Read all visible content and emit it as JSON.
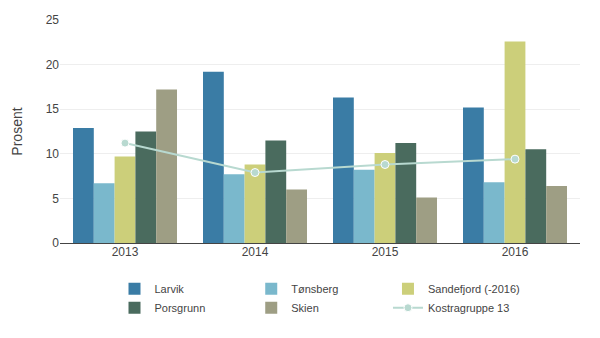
{
  "chart_data": {
    "type": "bar",
    "ylabel": "Prosent",
    "categories": [
      "2013",
      "2014",
      "2015",
      "2016"
    ],
    "series": [
      {
        "name": "Larvik",
        "color": "#3a7ca5",
        "values": [
          12.9,
          19.2,
          16.3,
          15.2
        ]
      },
      {
        "name": "Tønsberg",
        "color": "#7ab8cc",
        "values": [
          6.7,
          7.7,
          8.2,
          6.8
        ]
      },
      {
        "name": "Sandefjord (-2016)",
        "color": "#cccf7a",
        "values": [
          9.7,
          8.8,
          10.1,
          22.6
        ]
      },
      {
        "name": "Porsgrunn",
        "color": "#4a6b5e",
        "values": [
          12.5,
          11.5,
          11.2,
          10.5
        ]
      },
      {
        "name": "Skien",
        "color": "#9e9e84",
        "values": [
          17.2,
          6.0,
          5.1,
          6.4
        ]
      },
      {
        "name": "Kostragruppe 13",
        "color": "#b8d9d0",
        "type": "line",
        "marker": "circle",
        "values": [
          11.2,
          7.9,
          8.8,
          9.4
        ]
      }
    ],
    "ylim": [
      0,
      25
    ],
    "yticks": [
      0,
      5,
      10,
      15,
      20,
      25
    ],
    "grid": true,
    "legend": "bottom"
  }
}
